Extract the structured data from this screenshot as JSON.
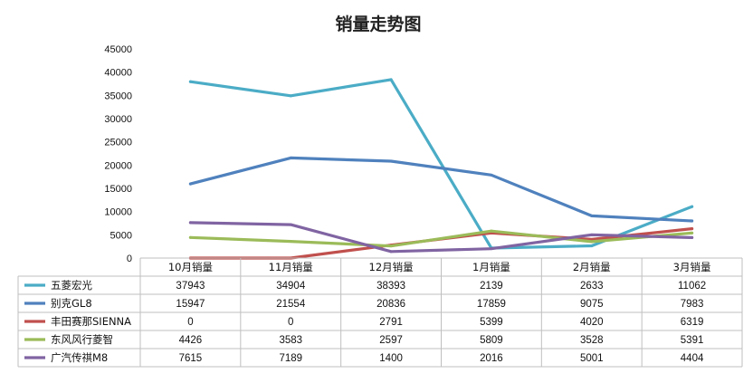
{
  "chart_data": {
    "type": "line",
    "title": "销量走势图",
    "categories": [
      "10月销量",
      "11月销量",
      "12月销量",
      "1月销量",
      "2月销量",
      "3月销量"
    ],
    "ylim": [
      0,
      45000
    ],
    "yticks": [
      0,
      5000,
      10000,
      15000,
      20000,
      25000,
      30000,
      35000,
      40000,
      45000
    ],
    "grid": false,
    "legend": "data-table-bottom",
    "series": [
      {
        "name": "五菱宏光",
        "color": "#4bacc6",
        "values": [
          37943,
          34904,
          38393,
          2139,
          2633,
          11062
        ]
      },
      {
        "name": "别克GL8",
        "color": "#4f81bd",
        "values": [
          15947,
          21554,
          20836,
          17859,
          9075,
          7983
        ]
      },
      {
        "name": "丰田赛那SIENNA",
        "color": "#c0504d",
        "values": [
          0,
          0,
          2791,
          5399,
          4020,
          6319
        ]
      },
      {
        "name": "东风风行菱智",
        "color": "#9bbb59",
        "values": [
          4426,
          3583,
          2597,
          5809,
          3528,
          5391
        ]
      },
      {
        "name": "广汽传祺M8",
        "color": "#8064a2",
        "values": [
          7615,
          7189,
          1400,
          2016,
          5001,
          4404
        ]
      }
    ]
  }
}
